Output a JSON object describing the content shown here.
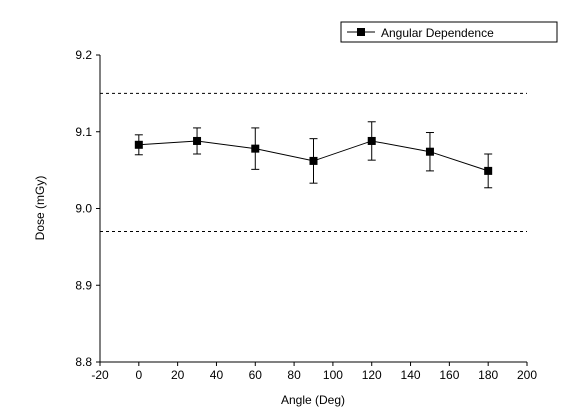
{
  "chart_data": {
    "type": "line",
    "x_label": "Angle (Deg)",
    "y_label": "Dose (mGy)",
    "x": [
      0,
      30,
      60,
      90,
      120,
      150,
      180
    ],
    "series": [
      {
        "name": "Angular Dependence",
        "color": "#000000",
        "values": [
          9.083,
          9.088,
          9.078,
          9.062,
          9.088,
          9.074,
          9.049
        ],
        "errors": [
          0.013,
          0.017,
          0.027,
          0.029,
          0.025,
          0.025,
          0.022
        ]
      }
    ],
    "reference_lines": [
      9.15,
      8.97
    ],
    "xlim": [
      -20,
      200
    ],
    "xticks": [
      -20,
      0,
      20,
      40,
      60,
      80,
      100,
      120,
      140,
      160,
      180,
      200
    ],
    "ylim": [
      8.8,
      9.2
    ],
    "yticks": [
      8.8,
      8.9,
      {
        "value": 9,
        "label": "9.0"
      },
      9.1,
      9.2
    ],
    "legend": "top-right",
    "grid": false
  }
}
